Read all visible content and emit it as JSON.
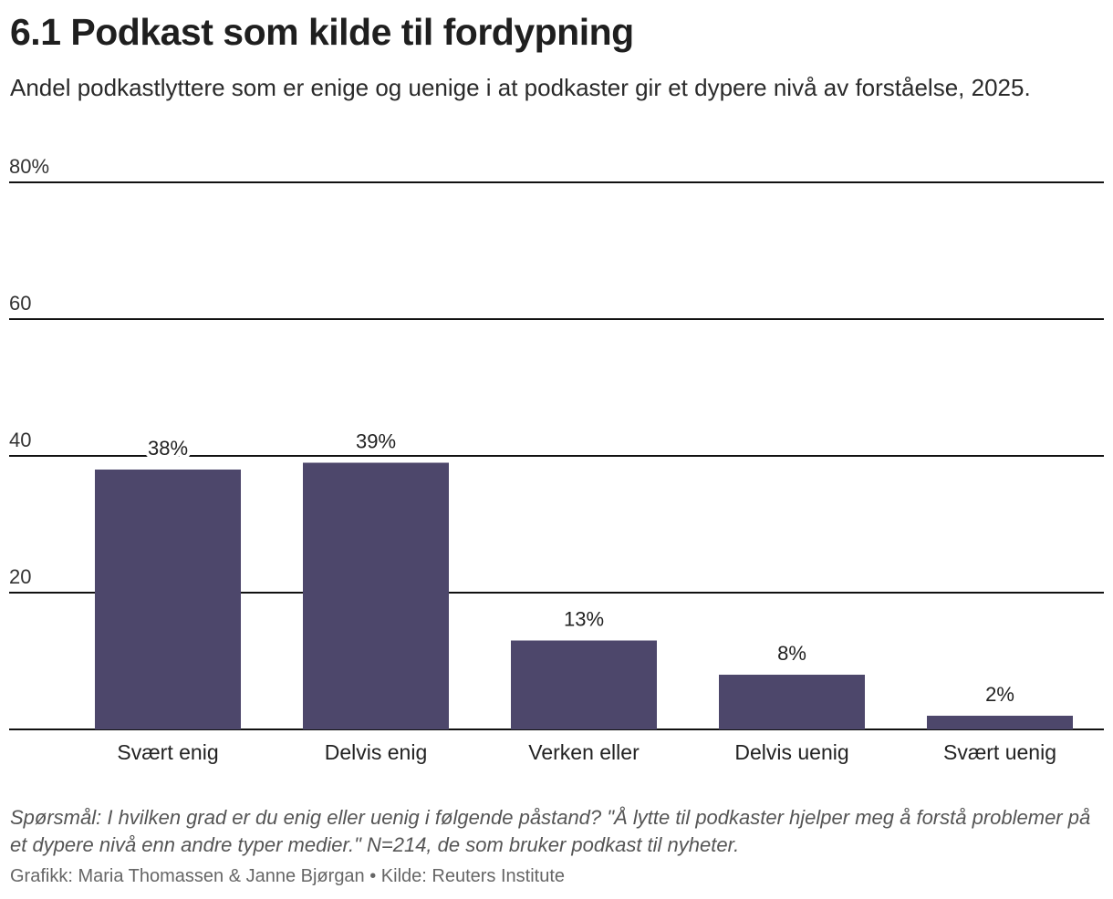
{
  "header": {
    "title": "6.1 Podkast som kilde til fordypning",
    "subtitle": "Andel podkastlyttere som er enige og uenige i at podkaster gir et dypere nivå av forståelse, 2025."
  },
  "chart_data": {
    "type": "bar",
    "categories": [
      "Svært enig",
      "Delvis enig",
      "Verken eller",
      "Delvis uenig",
      "Svært uenig"
    ],
    "values": [
      38,
      39,
      13,
      8,
      2
    ],
    "value_labels": [
      "38%",
      "39%",
      "13%",
      "8%",
      "2%"
    ],
    "ylim": [
      0,
      80
    ],
    "yticks": [
      20,
      40,
      60,
      80
    ],
    "ytick_labels": [
      "20",
      "40",
      "60",
      "80%"
    ],
    "bar_color": "#4d476b",
    "grid": true
  },
  "footer": {
    "note": "Spørsmål: I hvilken grad er du enig eller uenig i følgende påstand? \"Å lytte til podkaster hjelper meg å forstå problemer på et dypere nivå enn andre typer medier.\" N=214, de som bruker podkast til nyheter.",
    "credit": "Grafikk: Maria Thomassen & Janne Bjørgan • Kilde: Reuters Institute"
  }
}
